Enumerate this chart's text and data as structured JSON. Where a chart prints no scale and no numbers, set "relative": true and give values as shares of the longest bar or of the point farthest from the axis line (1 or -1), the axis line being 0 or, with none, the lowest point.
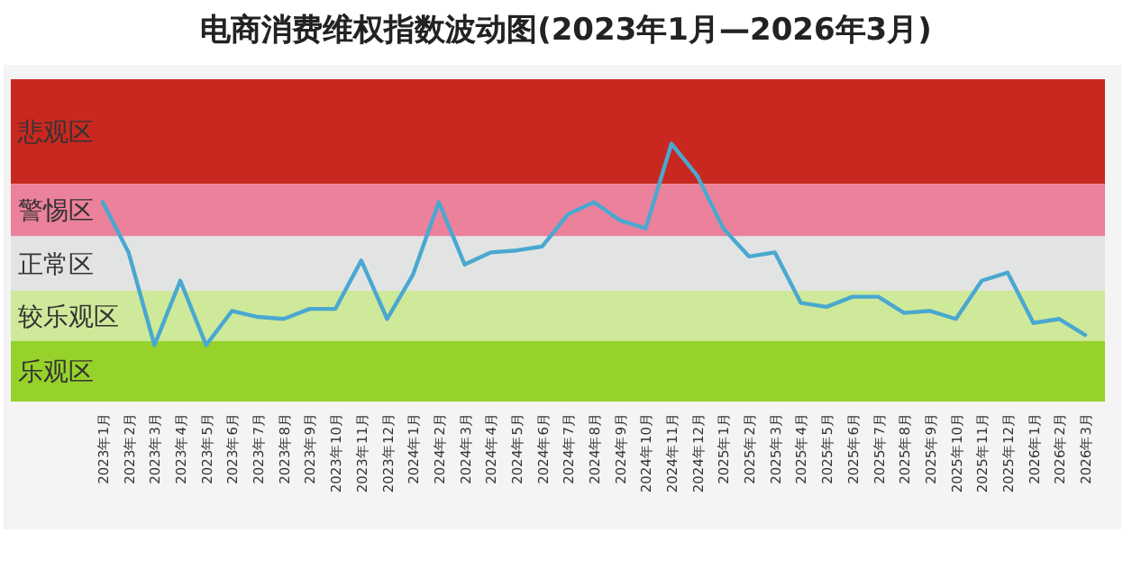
{
  "chart_data": {
    "type": "line",
    "title": "电商消费维权指数波动图(2023年1月—2026年3月)",
    "relative": true,
    "categories": [
      "2023年1月",
      "2023年2月",
      "2023年3月",
      "2023年4月",
      "2023年5月",
      "2023年6月",
      "2023年7月",
      "2023年8月",
      "2023年9月",
      "2023年10月",
      "2023年11月",
      "2023年12月",
      "2024年1月",
      "2024年2月",
      "2024年3月",
      "2024年4月",
      "2024年5月",
      "2024年6月",
      "2024年7月",
      "2024年8月",
      "2024年9月",
      "2024年10月",
      "2024年11月",
      "2024年12月",
      "2025年1月",
      "2025年2月",
      "2025年3月",
      "2025年4月",
      "2025年5月",
      "2025年6月",
      "2025年7月",
      "2025年8月",
      "2025年9月",
      "2025年10月",
      "2025年11月",
      "2025年12月",
      "2026年1月",
      "2026年2月",
      "2026年3月"
    ],
    "series": [
      {
        "color": "#4aa8d0",
        "values": [
          0.71,
          0.46,
          0,
          0.32,
          0,
          0.17,
          0.14,
          0.13,
          0.18,
          0.18,
          0.42,
          0.13,
          0.35,
          0.71,
          0.4,
          0.46,
          0.47,
          0.49,
          0.65,
          0.71,
          0.62,
          0.58,
          1,
          0.84,
          0.58,
          0.44,
          0.46,
          0.21,
          0.19,
          0.24,
          0.24,
          0.16,
          0.17,
          0.13,
          0.32,
          0.36,
          0.11,
          0.13,
          0.05
        ]
      }
    ],
    "bands": [
      {
        "axis": "y",
        "from": 0.8,
        "to": 1.32,
        "label": "悲观区",
        "color": "#c8281f"
      },
      {
        "axis": "y",
        "from": 0.54,
        "to": 0.8,
        "label": "警惕区",
        "color": "#ec819b"
      },
      {
        "axis": "y",
        "from": 0.27,
        "to": 0.54,
        "label": "正常区",
        "color": "#e2e4e3"
      },
      {
        "axis": "y",
        "from": 0.02,
        "to": 0.27,
        "label": "较乐观区",
        "color": "#cfe99a"
      },
      {
        "axis": "y",
        "from": -0.28,
        "to": 0.02,
        "label": "乐观区",
        "color": "#96d22a"
      }
    ],
    "marker": "none",
    "line_style": "solid"
  }
}
